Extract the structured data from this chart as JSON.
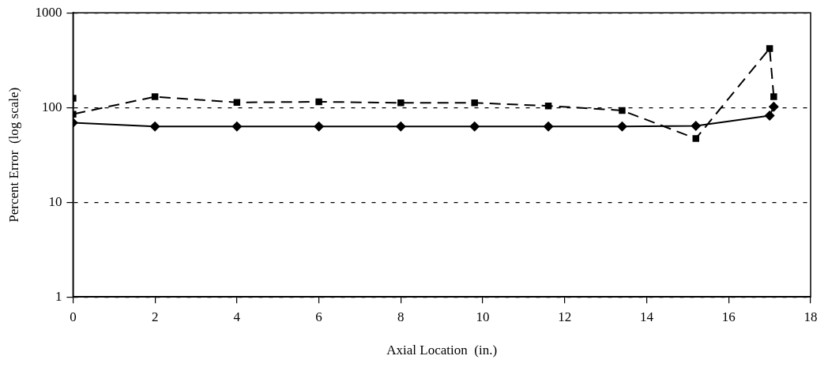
{
  "chart_data": {
    "type": "line",
    "xlabel": "Axial Location  (in.)",
    "ylabel": "Percent Error  (log scale)",
    "log": "y",
    "grid": "y",
    "legend": false,
    "xlim": [
      0,
      18
    ],
    "xticks": [
      0,
      2,
      4,
      6,
      8,
      10,
      12,
      14,
      16,
      18
    ],
    "ylim": [
      1,
      1000
    ],
    "yticks": [
      1,
      10,
      100,
      1000
    ],
    "series": [
      {
        "color": "#000000",
        "marker": "diamond",
        "line_style": "solid",
        "x": [
          0,
          2,
          4,
          6,
          8,
          9.8,
          11.6,
          13.4,
          15.2,
          17,
          17.1
        ],
        "values": [
          69,
          63,
          63,
          63,
          63,
          63,
          63,
          63,
          64,
          82,
          102
        ]
      },
      {
        "color": "#000000",
        "marker": "square",
        "line_style": "dashed",
        "x": [
          0,
          0,
          2,
          4,
          6,
          8,
          9.8,
          11.6,
          13.4,
          15.2,
          17,
          17.1
        ],
        "values": [
          125,
          85,
          130,
          113,
          115,
          112,
          112,
          104,
          93,
          47,
          420,
          130
        ]
      }
    ]
  }
}
